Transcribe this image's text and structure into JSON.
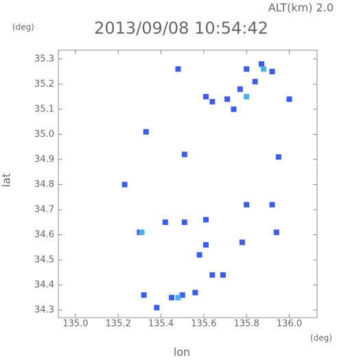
{
  "chart_data": {
    "type": "scatter",
    "title": "2013/09/08 10:54:42",
    "subtitle": "ALT(km)  2.0",
    "xlabel": "lon",
    "ylabel": "lat",
    "xunit": "(deg)",
    "yunit": "(deg)",
    "xlim": [
      134.92,
      136.13
    ],
    "ylim": [
      34.27,
      35.335
    ],
    "xticks": [
      {
        "value": 135,
        "label": "135.0"
      },
      135.2,
      135.4,
      135.6,
      135.8,
      {
        "value": 136,
        "label": "136.0"
      }
    ],
    "yticks": [
      34.3,
      34.4,
      34.5,
      34.6,
      34.7,
      34.8,
      34.9,
      {
        "value": 35,
        "label": "35.0"
      },
      35.1,
      35.2,
      35.3
    ],
    "series": [
      {
        "color": "#3a5cf0",
        "x": [
          135.8,
          135.87,
          135.92,
          135.77,
          135.71,
          135.64,
          135.74,
          135.84,
          136.0,
          135.61,
          135.48,
          135.33,
          135.95,
          135.23,
          135.8,
          135.92,
          135.94,
          135.78,
          135.61,
          135.3,
          135.42,
          135.51,
          135.61,
          135.64,
          135.69,
          135.32,
          135.45,
          135.5,
          135.56,
          135.38,
          135.58,
          135.51
        ],
        "values": [
          35.26,
          35.28,
          35.25,
          35.18,
          35.14,
          35.13,
          35.1,
          35.21,
          35.14,
          35.15,
          35.26,
          35.01,
          34.91,
          34.8,
          34.72,
          34.72,
          34.61,
          34.57,
          34.56,
          34.61,
          34.65,
          34.65,
          34.66,
          34.44,
          34.44,
          34.36,
          34.35,
          34.36,
          34.37,
          34.31,
          34.52,
          34.92
        ]
      },
      {
        "color": "#4ab0f0",
        "x": [
          135.88,
          135.8,
          135.31,
          135.48
        ],
        "values": [
          35.26,
          35.15,
          34.61,
          34.35
        ]
      }
    ]
  }
}
